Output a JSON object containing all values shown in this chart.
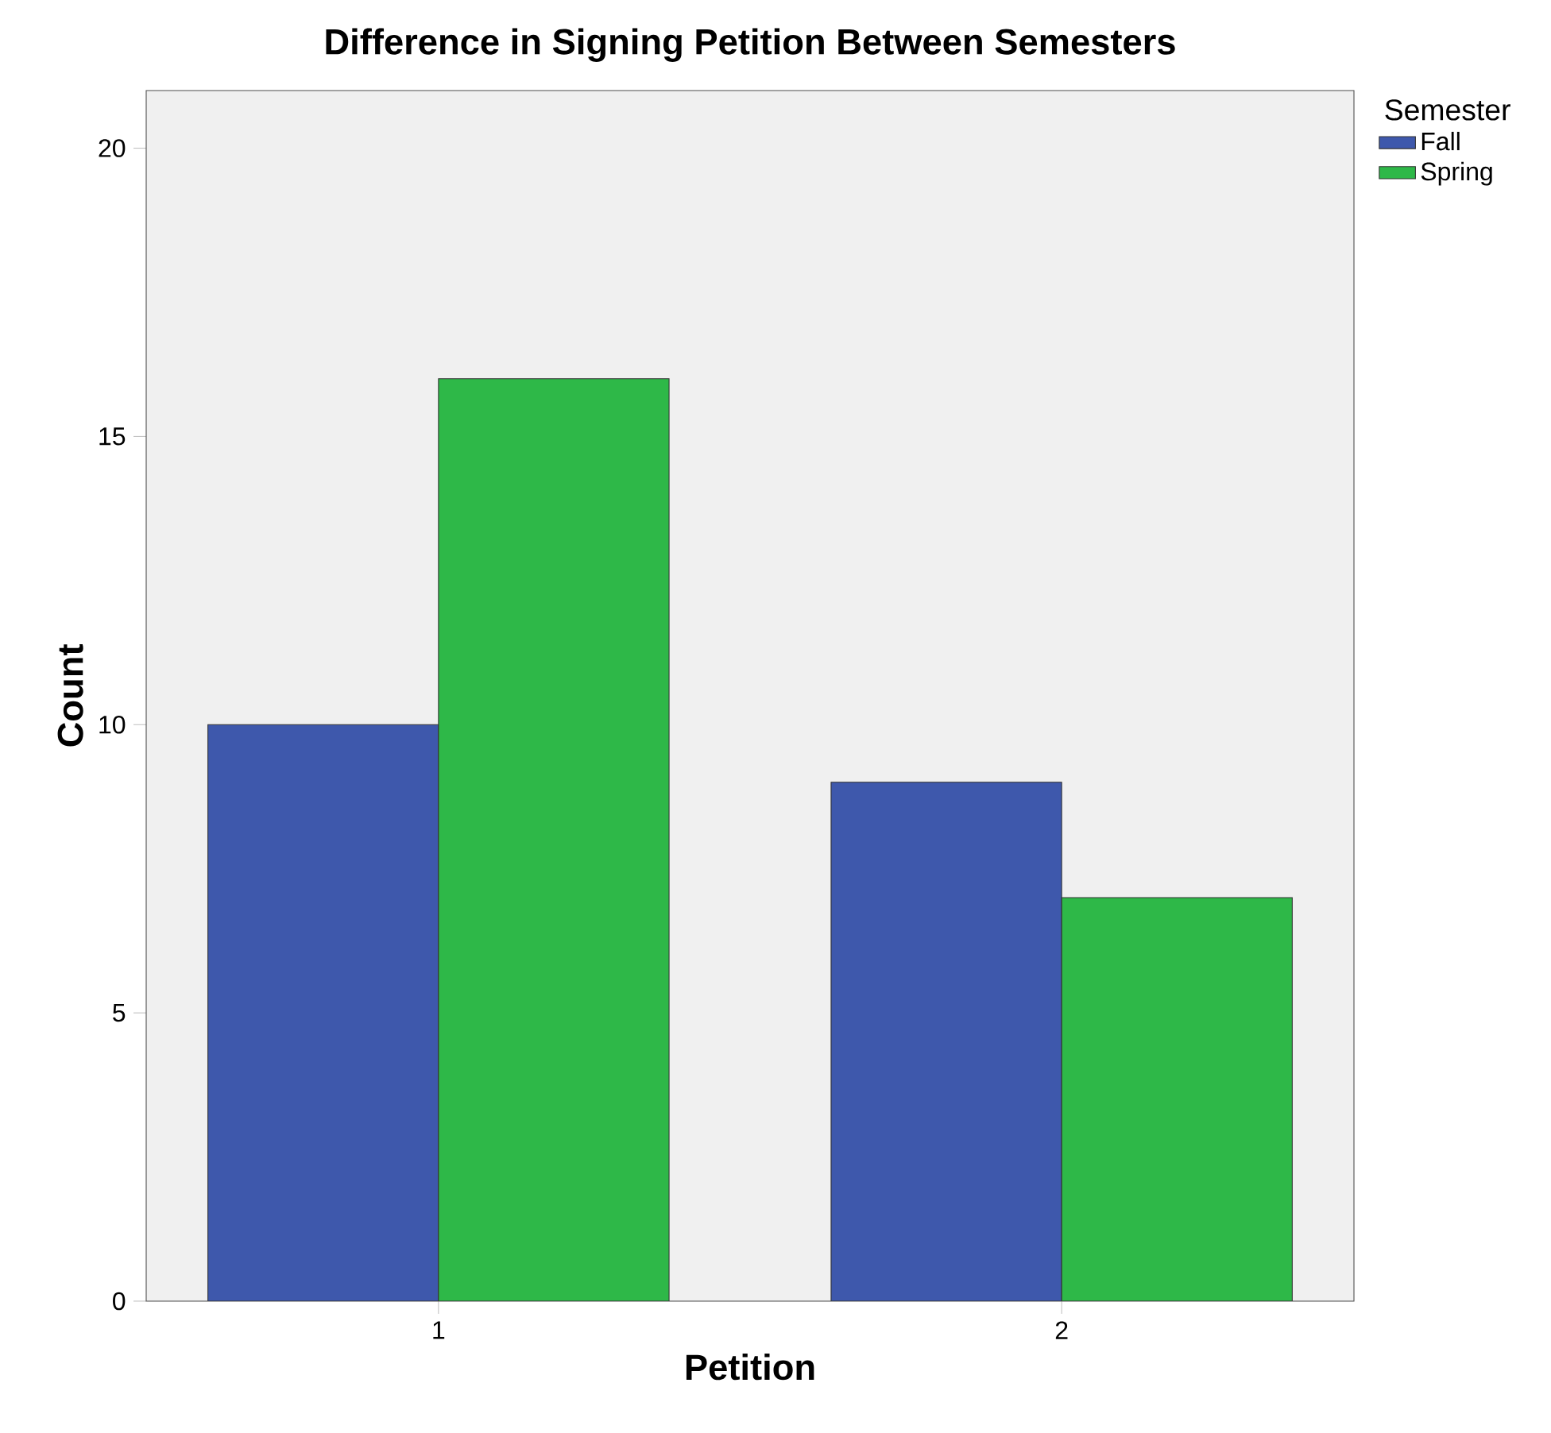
{
  "chart_data": {
    "type": "bar",
    "title": "Difference in Signing Petition Between Semesters",
    "xlabel": "Petition",
    "ylabel": "Count",
    "legend_title": "Semester",
    "categories": [
      "1",
      "2"
    ],
    "series": [
      {
        "name": "Fall",
        "color": "#3e58ac",
        "values": [
          10,
          9
        ]
      },
      {
        "name": "Spring",
        "color": "#2eb848",
        "values": [
          16,
          7
        ]
      }
    ],
    "ylim": [
      0,
      21
    ],
    "yticks": [
      0,
      5,
      10,
      15,
      20
    ],
    "legend": "right"
  }
}
